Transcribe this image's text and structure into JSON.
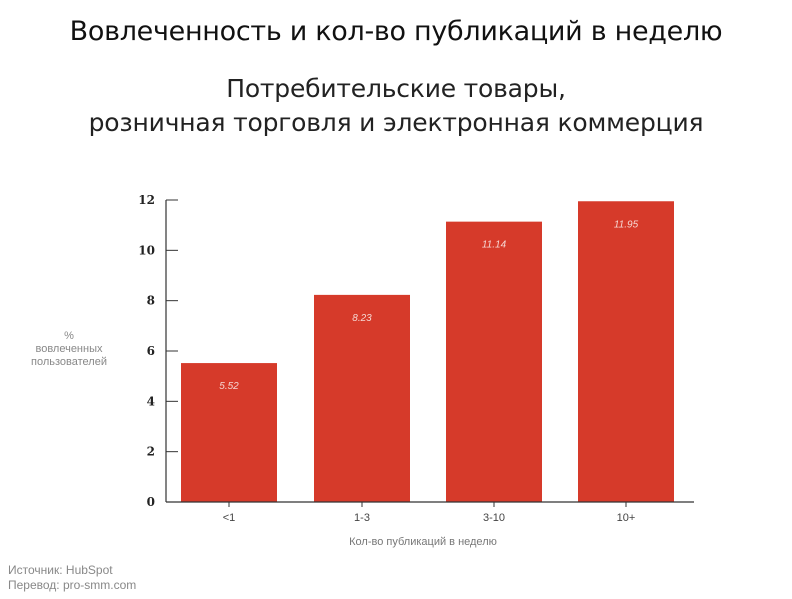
{
  "title": "Вовлеченность и кол-во публикаций в неделю",
  "subtitle": {
    "line1": "Потребительские товары,",
    "line2": "розничная торговля и электронная коммерция"
  },
  "ylabel": {
    "line1": "%",
    "line2": "вовлеченных",
    "line3": "пользователей"
  },
  "source": {
    "line1": "Источник: HubSpot",
    "line2": "Перевод: pro-smm.com"
  },
  "colors": {
    "bar": "#d63a2a",
    "bar_label": "#f6d7d2",
    "axis": "#333333"
  },
  "chart_data": {
    "type": "bar",
    "categories": [
      "<1",
      "1-3",
      "3-10",
      "10+"
    ],
    "values": [
      5.52,
      8.23,
      11.14,
      11.95
    ],
    "data_labels": [
      "5.52",
      "8.23",
      "11.14",
      "11.95"
    ],
    "yticks": [
      0,
      2,
      4,
      6,
      8,
      10,
      12
    ],
    "ylim": [
      0,
      12
    ],
    "xlabel": "Кол-во публикаций в неделю",
    "ylabel": "% вовлеченных пользователей",
    "grid": false,
    "legend": "none"
  }
}
